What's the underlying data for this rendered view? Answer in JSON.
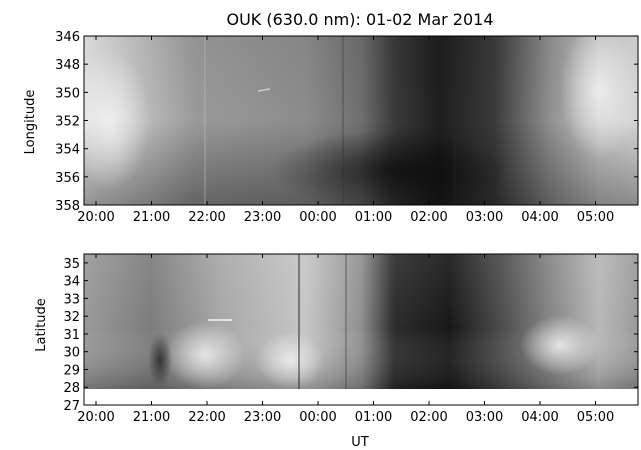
{
  "chart_data": [
    {
      "type": "heatmap",
      "title": "OUK (630.0 nm): 01-02 Mar 2014",
      "xlabel": "",
      "ylabel": "Longitude",
      "x_ticks": [
        "20:00",
        "21:00",
        "22:00",
        "23:00",
        "00:00",
        "01:00",
        "02:00",
        "03:00",
        "04:00",
        "05:00"
      ],
      "y_ticks": [
        "346",
        "348",
        "350",
        "352",
        "354",
        "356",
        "358"
      ],
      "ylim": [
        358,
        346
      ],
      "colormap": "gray"
    },
    {
      "type": "heatmap",
      "title": "",
      "xlabel": "UT",
      "ylabel": "Latitude",
      "x_ticks": [
        "20:00",
        "21:00",
        "22:00",
        "23:00",
        "00:00",
        "01:00",
        "02:00",
        "03:00",
        "04:00",
        "05:00"
      ],
      "y_ticks": [
        "27",
        "28",
        "29",
        "30",
        "31",
        "32",
        "33",
        "34",
        "35"
      ],
      "ylim": [
        27,
        35.5
      ],
      "colormap": "gray"
    }
  ]
}
